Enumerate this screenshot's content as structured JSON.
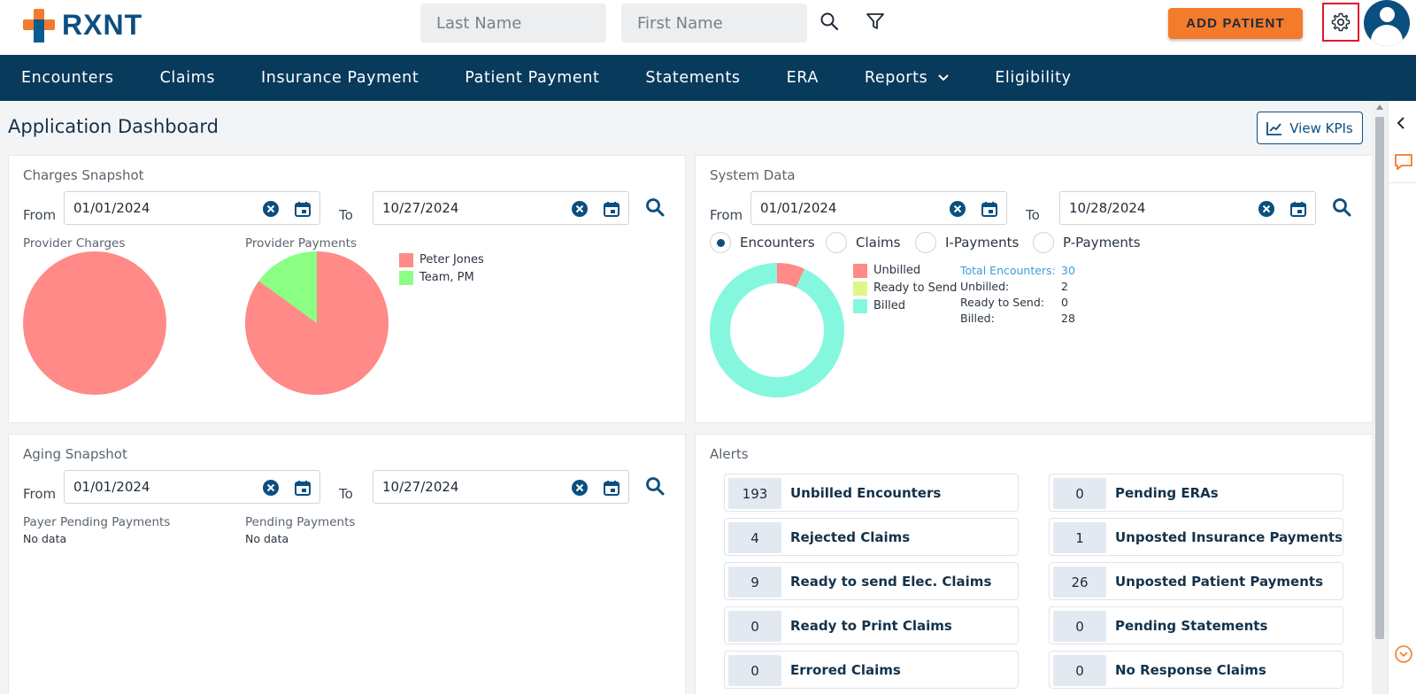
{
  "header": {
    "logo_text": "RXNT",
    "last_name_placeholder": "Last Name",
    "first_name_placeholder": "First Name",
    "add_patient_label": "ADD PATIENT"
  },
  "nav": {
    "items": [
      "Encounters",
      "Claims",
      "Insurance Payment",
      "Patient Payment",
      "Statements",
      "ERA",
      "Reports",
      "Eligibility"
    ]
  },
  "page": {
    "title": "Application Dashboard",
    "view_kpis_label": "View KPIs"
  },
  "charges_snapshot": {
    "title": "Charges Snapshot",
    "from_label": "From",
    "to_label": "To",
    "from_date": "01/01/2024",
    "to_date": "10/27/2024",
    "provider_charges_label": "Provider Charges",
    "provider_payments_label": "Provider Payments",
    "legend": [
      {
        "name": "Peter Jones",
        "color": "#ff8a87"
      },
      {
        "name": "Team, PM",
        "color": "#8aff83"
      }
    ],
    "charges_pie": [
      {
        "name": "Peter Jones",
        "share": 1.0
      }
    ],
    "payments_pie": [
      {
        "name": "Peter Jones",
        "share": 0.85
      },
      {
        "name": "Team, PM",
        "share": 0.15
      }
    ]
  },
  "system_data": {
    "title": "System Data",
    "from_label": "From",
    "to_label": "To",
    "from_date": "01/01/2024",
    "to_date": "10/28/2024",
    "radios": [
      {
        "label": "Encounters",
        "selected": true
      },
      {
        "label": "Claims",
        "selected": false
      },
      {
        "label": "I-Payments",
        "selected": false
      },
      {
        "label": "P-Payments",
        "selected": false
      }
    ],
    "legend": [
      {
        "name": "Unbilled",
        "color": "#ff8a87"
      },
      {
        "name": "Ready to Send",
        "color": "#e2f58a"
      },
      {
        "name": "Billed",
        "color": "#86f7df"
      }
    ],
    "stats": [
      {
        "key": "Total Encounters:",
        "value": "30"
      },
      {
        "key": "Unbilled:",
        "value": "2"
      },
      {
        "key": "Ready to Send:",
        "value": "0"
      },
      {
        "key": "Billed:",
        "value": "28"
      }
    ]
  },
  "aging_snapshot": {
    "title": "Aging Snapshot",
    "from_label": "From",
    "to_label": "To",
    "from_date": "01/01/2024",
    "to_date": "10/27/2024",
    "payer_pending_label": "Payer Pending Payments",
    "payer_pending_value": "No data",
    "pending_payments_label": "Pending Payments",
    "pending_payments_value": "No data"
  },
  "alerts": {
    "title": "Alerts",
    "left": [
      {
        "count": "193",
        "label": "Unbilled Encounters"
      },
      {
        "count": "4",
        "label": "Rejected Claims"
      },
      {
        "count": "9",
        "label": "Ready to send Elec. Claims"
      },
      {
        "count": "0",
        "label": "Ready to Print Claims"
      },
      {
        "count": "0",
        "label": "Errored Claims"
      }
    ],
    "right": [
      {
        "count": "0",
        "label": "Pending ERAs"
      },
      {
        "count": "1",
        "label": "Unposted Insurance Payments"
      },
      {
        "count": "26",
        "label": "Unposted Patient Payments"
      },
      {
        "count": "0",
        "label": "Pending Statements"
      },
      {
        "count": "0",
        "label": "No Response Claims"
      }
    ]
  },
  "colors": {
    "brand_navy": "#083a5c",
    "brand_orange": "#f47a2c",
    "accent_blue": "#0a4f80"
  }
}
